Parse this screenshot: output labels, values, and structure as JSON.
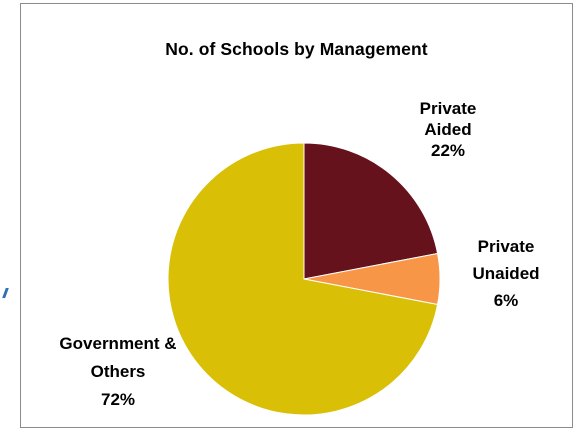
{
  "chart_data": {
    "type": "pie",
    "title": "No. of Schools by Management",
    "slices": [
      {
        "label_lines": [
          "Private",
          "Aided",
          "22%"
        ],
        "value": 22,
        "color": "#65121c"
      },
      {
        "label_lines": [
          "Private",
          "Unaided",
          "6%"
        ],
        "value": 6,
        "color": "#f79646"
      },
      {
        "label_lines": [
          "Government &",
          "Others",
          "72%"
        ],
        "value": 72,
        "color": "#d9bf06"
      }
    ],
    "start_angle_deg": 0,
    "direction": "clockwise",
    "legend": "none"
  }
}
